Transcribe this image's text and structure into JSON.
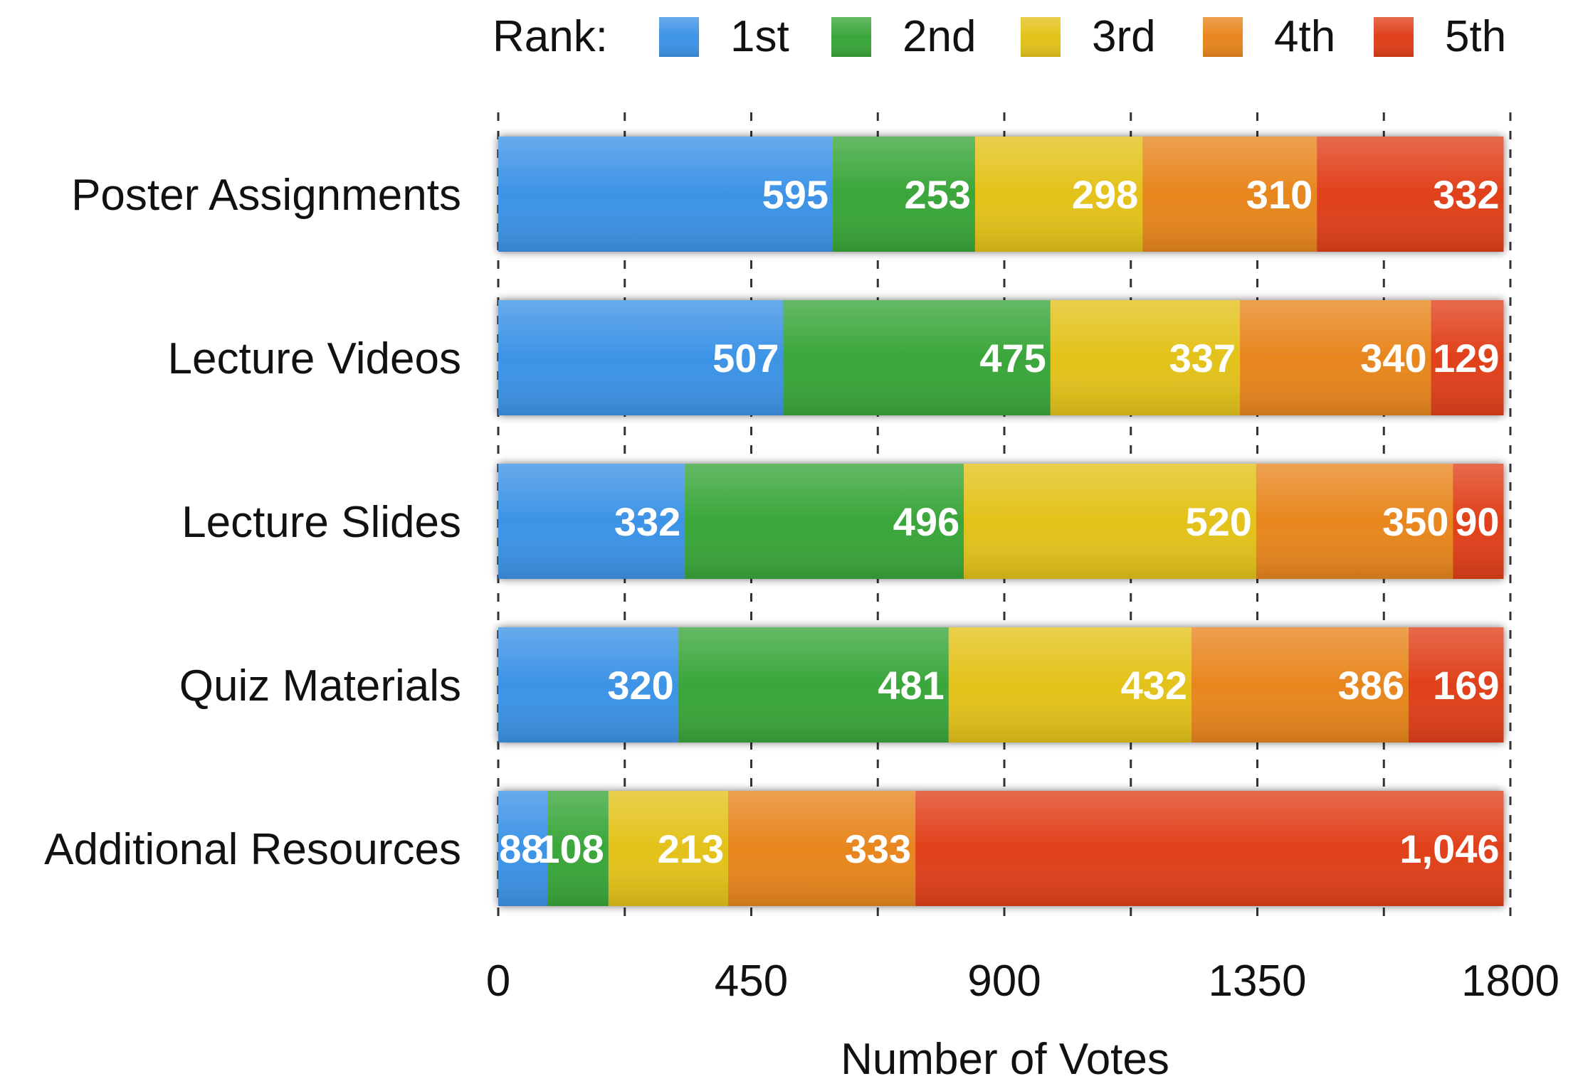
{
  "chart_data": {
    "type": "bar",
    "orientation": "horizontal",
    "stacked": true,
    "categories": [
      "Poster Assignments",
      "Lecture Videos",
      "Lecture Slides",
      "Quiz Materials",
      "Additional Resources"
    ],
    "series": [
      {
        "name": "1st",
        "color": "#3d93e6",
        "values": [
          595,
          507,
          332,
          320,
          88
        ],
        "labels": [
          "595",
          "507",
          "332",
          "320",
          "88"
        ]
      },
      {
        "name": "2nd",
        "color": "#3aa63a",
        "values": [
          253,
          475,
          496,
          481,
          108
        ],
        "labels": [
          "253",
          "475",
          "496",
          "481",
          "108"
        ]
      },
      {
        "name": "3rd",
        "color": "#e3c21a",
        "values": [
          298,
          337,
          520,
          432,
          213
        ],
        "labels": [
          "298",
          "337",
          "520",
          "432",
          "213"
        ]
      },
      {
        "name": "4th",
        "color": "#e8861e",
        "values": [
          310,
          340,
          350,
          386,
          333
        ],
        "labels": [
          "310",
          "340",
          "350",
          "386",
          "333"
        ]
      },
      {
        "name": "5th",
        "color": "#e0401a",
        "values": [
          332,
          129,
          90,
          169,
          1046
        ],
        "labels": [
          "332",
          "129",
          "90",
          "169",
          "1,046"
        ]
      }
    ],
    "legend_title": "Rank:",
    "legend_position": "top",
    "xlabel": "Number of Votes",
    "ylabel": "",
    "xlim": [
      0,
      1800
    ],
    "xticks": [
      0,
      450,
      900,
      1350,
      1800
    ],
    "grid": true
  }
}
